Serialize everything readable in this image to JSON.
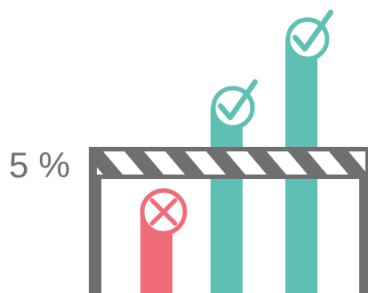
{
  "threshold": {
    "label": "5 %"
  },
  "bars": [
    {
      "name": "below-threshold",
      "status": "fail",
      "icon": "cross-icon"
    },
    {
      "name": "above-threshold-low",
      "status": "pass",
      "icon": "check-icon"
    },
    {
      "name": "above-threshold-high",
      "status": "pass",
      "icon": "check-icon"
    }
  ],
  "colors": {
    "fail": "#ef6b79",
    "pass": "#5ec0b2",
    "barrier": "#6f6f6f",
    "stripe_light": "#ffffff",
    "background": "#ffffff"
  }
}
